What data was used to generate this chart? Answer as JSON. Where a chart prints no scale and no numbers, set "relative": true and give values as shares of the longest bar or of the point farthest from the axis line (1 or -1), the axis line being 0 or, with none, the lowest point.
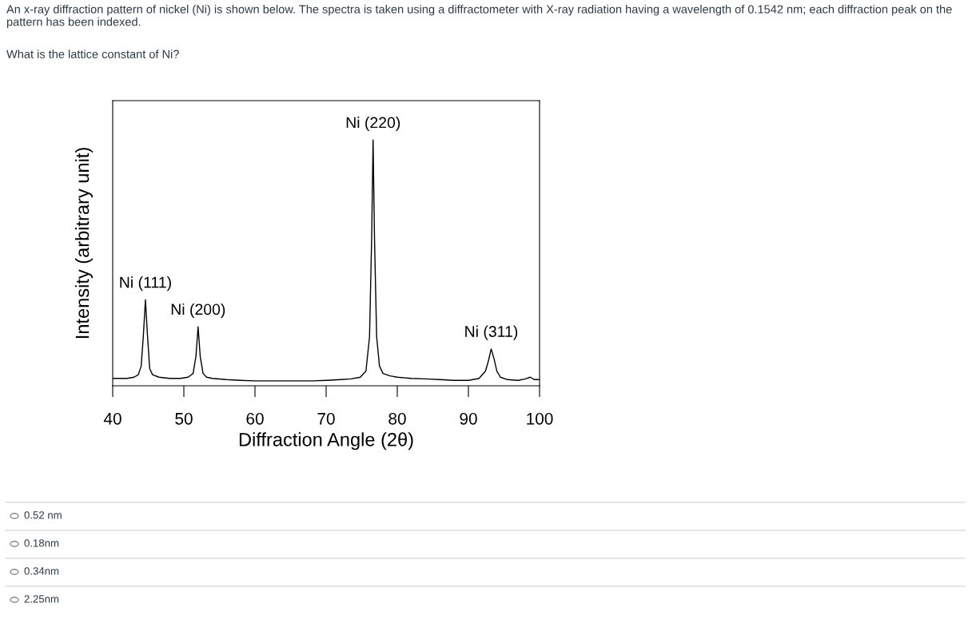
{
  "chart_data": {
    "type": "line",
    "relative": true,
    "title": "An x-ray diffraction pattern of nickel (Ni) is shown below. The spectra is taken using a diffractometer with X-ray radiation having a wavelength of 0.1542 nm; each diffraction peak on the pattern has been indexed.",
    "subtitle": "What is the lattice constant of Ni?",
    "xlabel": "Diffraction Angle (2θ)",
    "ylabel": "Intensity (arbitrary unit)",
    "xlim": [
      40,
      100
    ],
    "xticks": [
      40,
      50,
      60,
      70,
      80,
      90,
      100
    ],
    "grid": false,
    "legend": false,
    "marker": "none",
    "line_style": "solid",
    "series": [
      {
        "color": "#000000",
        "x": [
          40.0,
          41.0,
          42.0,
          43.0,
          43.6,
          44.0,
          44.3,
          44.6,
          44.9,
          45.2,
          45.6,
          46.5,
          48.0,
          49.5,
          50.6,
          51.3,
          51.7,
          52.0,
          52.3,
          52.7,
          53.2,
          54.0,
          56.0,
          58.0,
          60.0,
          62.0,
          64.0,
          66.0,
          68.0,
          70.0,
          72.0,
          73.5,
          74.8,
          75.6,
          76.1,
          76.4,
          76.6,
          76.8,
          77.1,
          77.5,
          78.0,
          79.0,
          80.0,
          82.0,
          84.0,
          86.0,
          88.0,
          90.0,
          91.5,
          92.4,
          92.8,
          93.2,
          93.6,
          94.0,
          94.5,
          95.5,
          97.0,
          98.0,
          98.7,
          99.3,
          100.0
        ],
        "values": [
          0.03,
          0.03,
          0.03,
          0.035,
          0.045,
          0.08,
          0.2,
          0.35,
          0.2,
          0.07,
          0.045,
          0.035,
          0.03,
          0.03,
          0.035,
          0.05,
          0.12,
          0.24,
          0.12,
          0.05,
          0.035,
          0.03,
          0.025,
          0.022,
          0.02,
          0.02,
          0.02,
          0.02,
          0.02,
          0.022,
          0.025,
          0.028,
          0.035,
          0.06,
          0.2,
          0.6,
          1.0,
          0.6,
          0.2,
          0.08,
          0.05,
          0.04,
          0.035,
          0.03,
          0.028,
          0.025,
          0.022,
          0.022,
          0.03,
          0.06,
          0.1,
          0.15,
          0.11,
          0.06,
          0.035,
          0.025,
          0.022,
          0.028,
          0.035,
          0.025,
          0.025
        ]
      }
    ],
    "annotations": [
      {
        "text": "Ni (111)",
        "x": 44.6,
        "y": 0.35
      },
      {
        "text": "Ni (200)",
        "x": 52.0,
        "y": 0.24
      },
      {
        "text": "Ni (220)",
        "x": 76.6,
        "y": 1.0
      },
      {
        "text": "Ni (311)",
        "x": 93.2,
        "y": 0.15
      },
      "0.52 nm",
      "0.18nm",
      "0.34nm",
      "2.25nm"
    ]
  }
}
